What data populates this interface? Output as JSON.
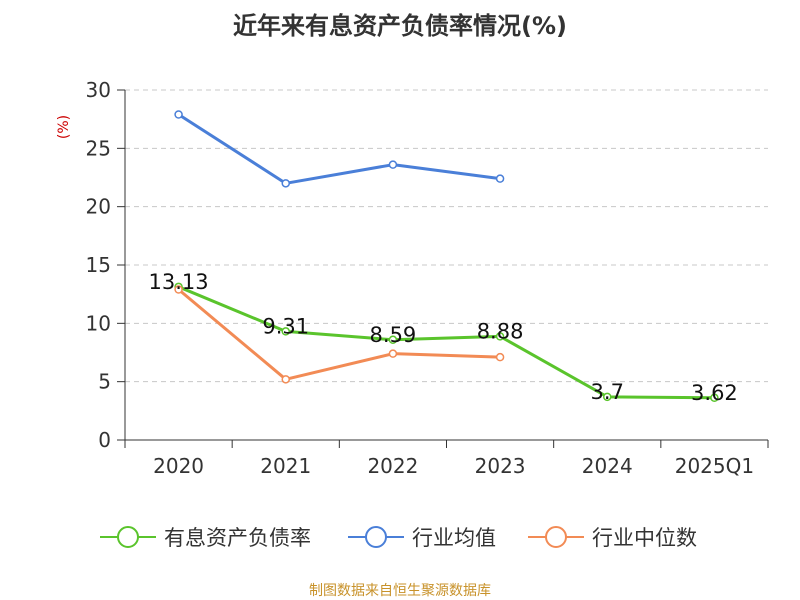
{
  "title": "近年来有息资产负债率情况(%)",
  "source": "制图数据来自恒生聚源数据库",
  "chart_data": {
    "type": "line",
    "title": "近年来有息资产负债率情况(%)",
    "ylabel": "(%)",
    "xlabel": "",
    "categories": [
      "2020",
      "2021",
      "2022",
      "2023",
      "2024",
      "2025Q1"
    ],
    "ylim": [
      0,
      30
    ],
    "yticks": [
      0,
      5,
      10,
      15,
      20,
      25,
      30
    ],
    "grid": true,
    "legend_position": "bottom",
    "series": [
      {
        "name": "有息资产负债率",
        "color": "#5ac42c",
        "values": [
          13.13,
          9.31,
          8.59,
          8.88,
          3.7,
          3.62
        ],
        "labels": [
          "13.13",
          "9.31",
          "8.59",
          "8.88",
          "3.7",
          "3.62"
        ]
      },
      {
        "name": "行业均值",
        "color": "#4a7fd8",
        "values": [
          27.9,
          22.0,
          23.6,
          22.4,
          null,
          null
        ]
      },
      {
        "name": "行业中位数",
        "color": "#f28b55",
        "values": [
          12.9,
          5.2,
          7.4,
          7.1,
          null,
          null
        ]
      }
    ]
  }
}
